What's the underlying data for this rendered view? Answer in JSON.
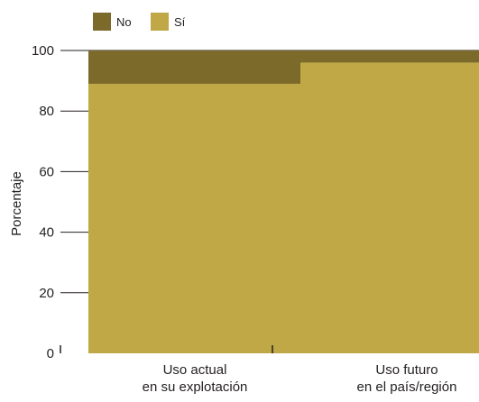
{
  "chart_data": {
    "type": "bar",
    "stacked": true,
    "categories": [
      [
        "Uso actual",
        "en su explotación"
      ],
      [
        "Uso futuro",
        "en el país/región"
      ]
    ],
    "series": [
      {
        "name": "Sí",
        "color": "#bfa845",
        "values": [
          89,
          96
        ]
      },
      {
        "name": "No",
        "color": "#7c6a2b",
        "values": [
          11,
          4
        ]
      }
    ],
    "legend": [
      {
        "name": "No",
        "color": "#7c6a2b"
      },
      {
        "name": "Sí",
        "color": "#bfa845"
      }
    ],
    "legend_position": "top-left",
    "ylabel": "Porcentaje",
    "xlabel": "",
    "title": "",
    "ylim": [
      0,
      100
    ],
    "yticks": [
      0,
      20,
      40,
      60,
      80,
      100
    ],
    "grid": true
  }
}
